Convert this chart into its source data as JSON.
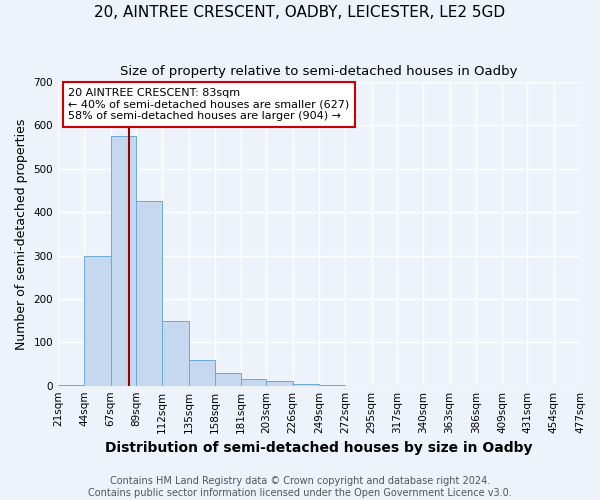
{
  "title": "20, AINTREE CRESCENT, OADBY, LEICESTER, LE2 5GD",
  "subtitle": "Size of property relative to semi-detached houses in Oadby",
  "xlabel": "Distribution of semi-detached houses by size in Oadby",
  "ylabel": "Number of semi-detached properties",
  "bin_edges": [
    21,
    44,
    67,
    89,
    112,
    135,
    158,
    181,
    203,
    226,
    249,
    272,
    295,
    317,
    340,
    363,
    386,
    409,
    431,
    454,
    477
  ],
  "bar_heights": [
    2,
    300,
    575,
    425,
    150,
    60,
    30,
    15,
    10,
    5,
    2,
    0,
    0,
    0,
    0,
    0,
    0,
    0,
    0,
    0
  ],
  "bar_color": "#c5d8f0",
  "bar_edge_color": "#6aaad4",
  "property_size": 83,
  "property_label": "20 AINTREE CRESCENT: 83sqm",
  "annotation_line1": "← 40% of semi-detached houses are smaller (627)",
  "annotation_line2": "58% of semi-detached houses are larger (904) →",
  "annotation_box_color": "#ffffff",
  "annotation_box_edge_color": "#cc0000",
  "vline_color": "#990000",
  "ylim": [
    0,
    700
  ],
  "yticks": [
    0,
    100,
    200,
    300,
    400,
    500,
    600,
    700
  ],
  "footer_line1": "Contains HM Land Registry data © Crown copyright and database right 2024.",
  "footer_line2": "Contains public sector information licensed under the Open Government Licence v3.0.",
  "bg_color": "#edf2fb",
  "grid_color": "#ffffff",
  "title_fontsize": 11,
  "subtitle_fontsize": 9.5,
  "axis_label_fontsize": 9,
  "tick_fontsize": 7.5,
  "footer_fontsize": 7,
  "annotation_fontsize": 8
}
